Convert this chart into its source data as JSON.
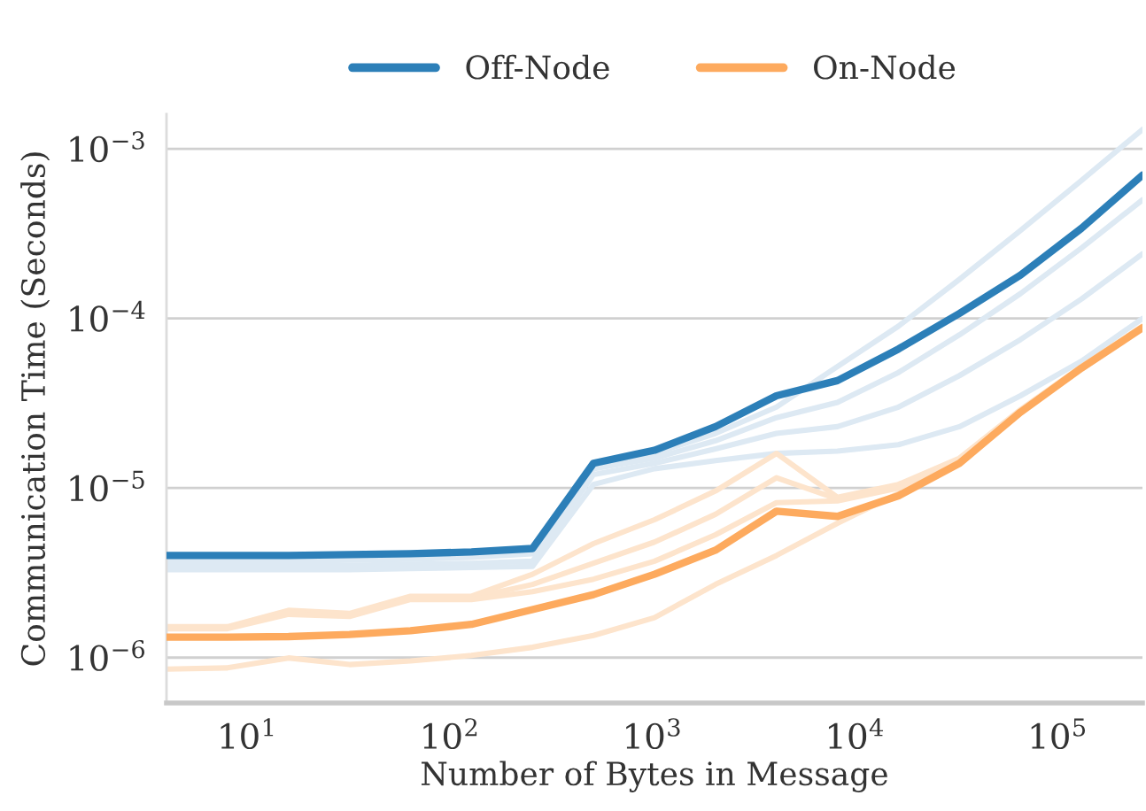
{
  "chart_data": {
    "type": "line",
    "xlabel": "Number of Bytes in Message",
    "ylabel": "Communication Time (Seconds)",
    "x": [
      4,
      8,
      16,
      32,
      64,
      128,
      256,
      512,
      1024,
      2048,
      4096,
      8192,
      16384,
      32768,
      65536,
      131072,
      262144
    ],
    "series": [
      {
        "color": "#dde9f3",
        "values": [
          3.9e-06,
          3.9e-06,
          3.9e-06,
          3.95e-06,
          4e-06,
          4.1e-06,
          4.3e-06,
          1.35e-05,
          1.6e-05,
          2.1e-05,
          3e-05,
          5.2e-05,
          9e-05,
          0.00017,
          0.00033,
          0.00065,
          0.0013
        ]
      },
      {
        "color": "#dde9f3",
        "values": [
          3.7e-06,
          3.7e-06,
          3.7e-06,
          3.75e-06,
          3.8e-06,
          3.9e-06,
          4.1e-06,
          1.3e-05,
          1.5e-05,
          1.9e-05,
          2.6e-05,
          3.2e-05,
          4.8e-05,
          8e-05,
          0.00014,
          0.00026,
          0.0005
        ]
      },
      {
        "color": "#dde9f3",
        "values": [
          3.5e-06,
          3.5e-06,
          3.5e-06,
          3.5e-06,
          3.55e-06,
          3.6e-06,
          3.7e-06,
          1.2e-05,
          1.4e-05,
          1.7e-05,
          2.1e-05,
          2.3e-05,
          3e-05,
          4.6e-05,
          7.5e-05,
          0.00013,
          0.00024
        ]
      },
      {
        "color": "#dde9f3",
        "values": [
          3.3e-06,
          3.3e-06,
          3.3e-06,
          3.3e-06,
          3.35e-06,
          3.4e-06,
          3.45e-06,
          1.05e-05,
          1.3e-05,
          1.45e-05,
          1.6e-05,
          1.65e-05,
          1.8e-05,
          2.3e-05,
          3.5e-05,
          5.6e-05,
          0.0001
        ]
      },
      {
        "color": "#fde4cc",
        "values": [
          1.52e-06,
          1.52e-06,
          1.9e-06,
          1.82e-06,
          2.3e-06,
          2.3e-06,
          3.1e-06,
          4.7e-06,
          6.5e-06,
          9.6e-06,
          1.6e-05,
          8.8e-06,
          1.05e-05,
          1.5e-05,
          2.9e-05,
          5.2e-05,
          9e-05
        ]
      },
      {
        "color": "#fde4cc",
        "values": [
          1.5e-06,
          1.5e-06,
          1.85e-06,
          1.8e-06,
          2.25e-06,
          2.25e-06,
          2.7e-06,
          3.6e-06,
          4.8e-06,
          7e-06,
          1.15e-05,
          8.6e-06,
          1.03e-05,
          1.45e-05,
          2.85e-05,
          5.1e-05,
          8.9e-05
        ]
      },
      {
        "color": "#fde4cc",
        "values": [
          1.48e-06,
          1.48e-06,
          1.8e-06,
          1.75e-06,
          2.2e-06,
          2.2e-06,
          2.45e-06,
          2.9e-06,
          3.7e-06,
          5.3e-06,
          8.2e-06,
          8.4e-06,
          1e-05,
          1.42e-05,
          2.8e-05,
          5e-05,
          8.8e-05
        ]
      },
      {
        "color": "#fde4cc",
        "values": [
          8.55e-07,
          8.7e-07,
          9.95e-07,
          9.1e-07,
          9.55e-07,
          1.03e-06,
          1.15e-06,
          1.35e-06,
          1.72e-06,
          2.7e-06,
          4e-06,
          6.2e-06,
          9.3e-06,
          1.4e-05,
          2.8e-05,
          5.1e-05,
          8.8e-05
        ]
      },
      {
        "name": "Off-Node",
        "color": "#2c7fb8",
        "values": [
          4e-06,
          4e-06,
          4e-06,
          4.05e-06,
          4.1e-06,
          4.2e-06,
          4.4e-06,
          1.4e-05,
          1.67e-05,
          2.3e-05,
          3.5e-05,
          4.3e-05,
          6.6e-05,
          0.000107,
          0.00018,
          0.00034,
          0.0007
        ]
      },
      {
        "name": "On-Node",
        "color": "#fdaa5e",
        "values": [
          1.32e-06,
          1.32e-06,
          1.33e-06,
          1.37e-06,
          1.44e-06,
          1.57e-06,
          1.92e-06,
          2.35e-06,
          3.1e-06,
          4.3e-06,
          7.3e-06,
          6.8e-06,
          9e-06,
          1.4e-05,
          2.8e-05,
          5.1e-05,
          8.8e-05
        ]
      }
    ],
    "log": "xy",
    "xlim": [
      4,
      262144
    ],
    "ylim": [
      5.4e-07,
      0.0016
    ],
    "xticks": [
      {
        "value": 10,
        "label": "10$^{1}$"
      },
      {
        "value": 100,
        "label": "10$^{2}$"
      },
      {
        "value": 1000,
        "label": "10$^{3}$"
      },
      {
        "value": 10000,
        "label": "10$^{4}$"
      },
      {
        "value": 100000,
        "label": "10$^{5}$"
      }
    ],
    "yticks": [
      {
        "value": 1e-06,
        "label": "10$^{−6}$"
      },
      {
        "value": 1e-05,
        "label": "10$^{−5}$"
      },
      {
        "value": 0.0001,
        "label": "10$^{−4}$"
      },
      {
        "value": 0.001,
        "label": "10$^{−3}$"
      }
    ],
    "grid": "y",
    "legend": "top",
    "marker": "none",
    "line_style": "solid"
  }
}
